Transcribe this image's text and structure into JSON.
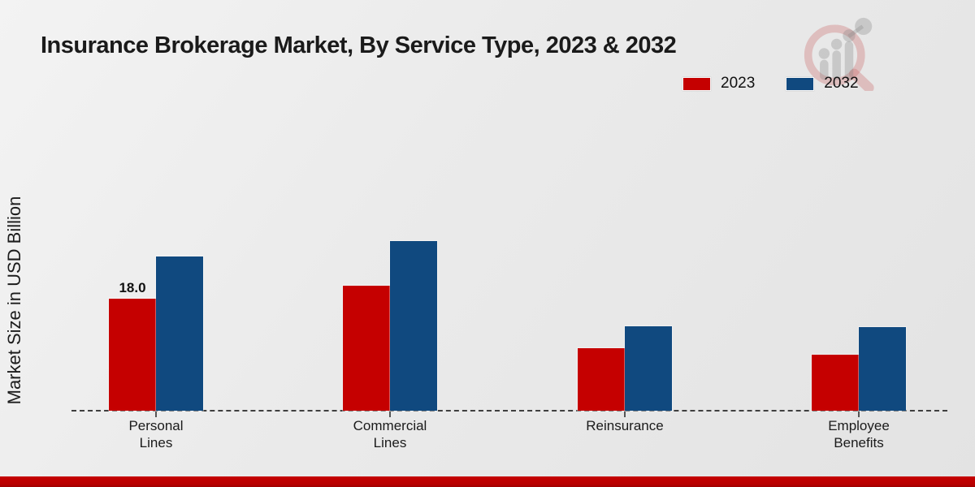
{
  "header": {
    "title": "Insurance Brokerage Market, By Service Type, 2023 & 2032"
  },
  "legend": {
    "items": [
      {
        "label": "2023",
        "color": "#c50000"
      },
      {
        "label": "2032",
        "color": "#10497f"
      }
    ]
  },
  "chart_data": {
    "type": "bar",
    "title": "Insurance Brokerage Market, By Service Type, 2023 & 2032",
    "xlabel": "",
    "ylabel": "Market Size in USD Billion",
    "categories": [
      "Personal\nLines",
      "Commercial\nLines",
      "Reinsurance",
      "Employee\nBenefits"
    ],
    "series": [
      {
        "name": "2023",
        "color": "#c50000",
        "values": [
          18.0,
          20.1,
          10.0,
          9.0
        ],
        "data_labels": [
          "18.0",
          "",
          "",
          ""
        ]
      },
      {
        "name": "2032",
        "color": "#10497f",
        "values": [
          24.8,
          27.3,
          13.6,
          13.4
        ],
        "data_labels": [
          "",
          "",
          "",
          ""
        ]
      }
    ],
    "ylim": [
      0,
      30
    ],
    "grid": false,
    "legend_position": "top-right",
    "baseline_style": "dashed",
    "accent_strip_color": "#c50000"
  },
  "logo": {
    "name": "market-research-magnifier-logo"
  }
}
